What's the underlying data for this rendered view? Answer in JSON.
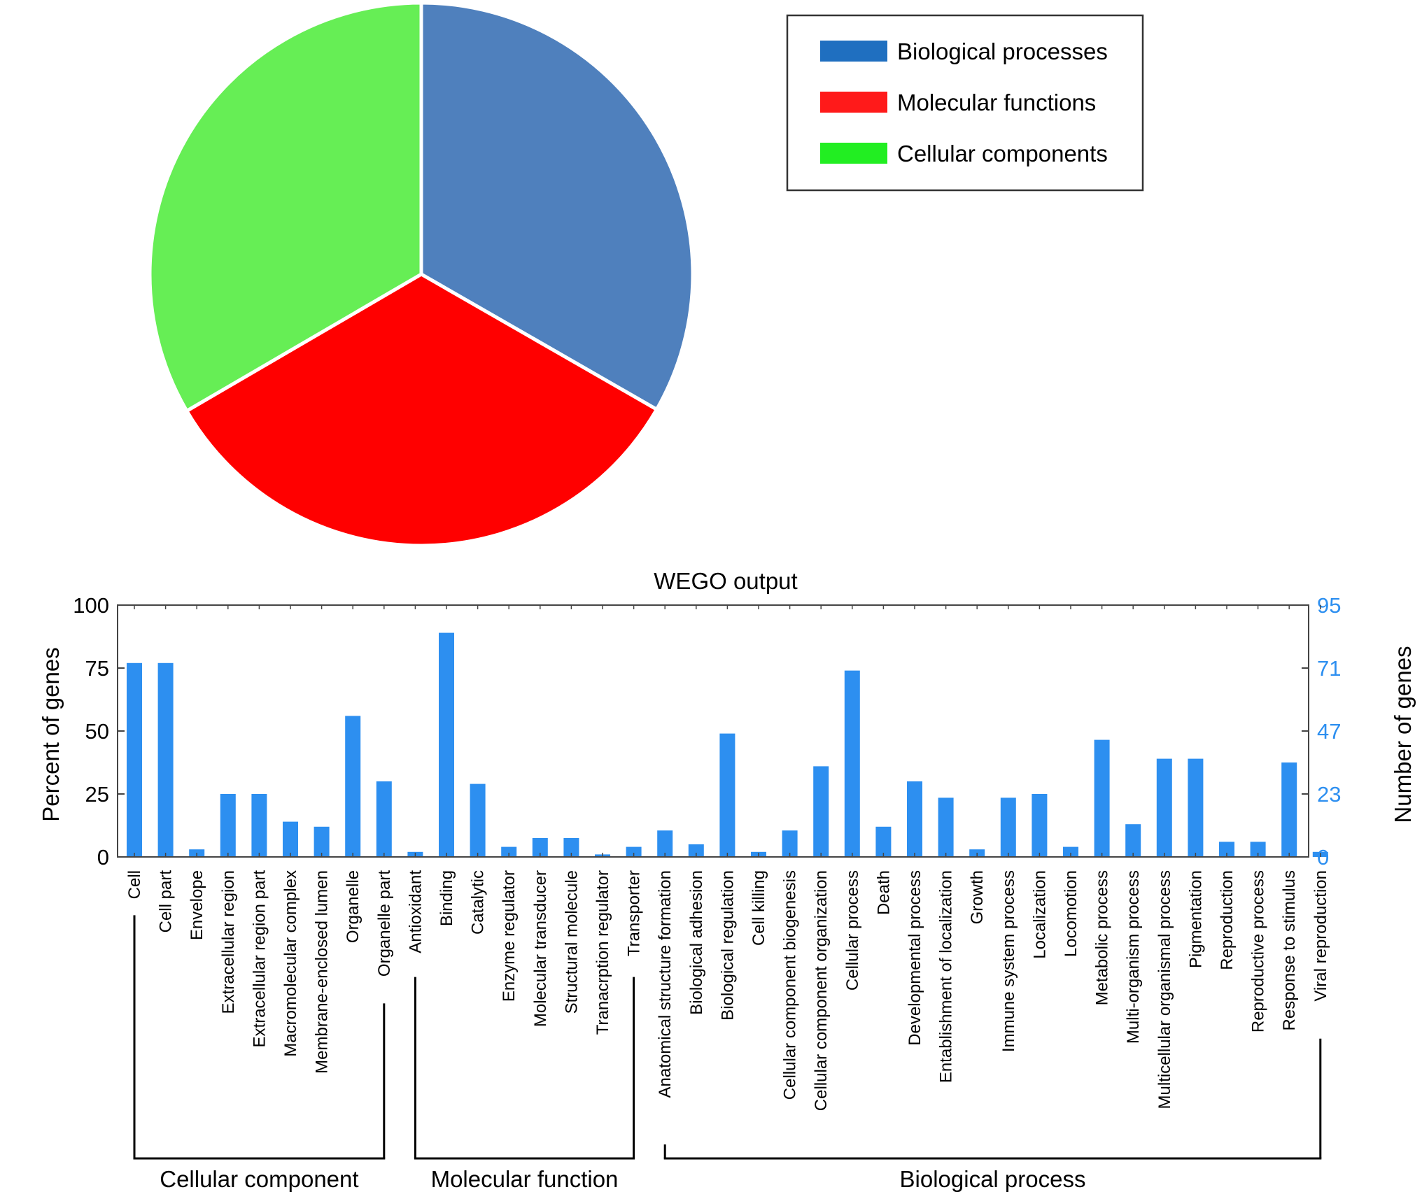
{
  "chart_data": [
    {
      "type": "pie",
      "slices": [
        {
          "label": "Biological processes",
          "value": 33.3,
          "color": "#4f80bd"
        },
        {
          "label": "Molecular functions",
          "value": 33.3,
          "color": "#ff0000"
        },
        {
          "label": "Cellular components",
          "value": 33.4,
          "color": "#66ee55"
        }
      ],
      "legend": {
        "position": "top-right",
        "entries": [
          {
            "label": "Biological processes",
            "color": "#1f6fc0"
          },
          {
            "label": "Molecular functions",
            "color": "#ff1a1a"
          },
          {
            "label": "Cellular components",
            "color": "#22ee22"
          }
        ]
      }
    },
    {
      "type": "bar",
      "title": "WEGO output",
      "ylabel": "Percent of genes",
      "y2label": "Number of genes",
      "ylim": [
        0,
        100
      ],
      "yticks": [
        "0",
        "25",
        "50",
        "75",
        "100"
      ],
      "y2ticks": [
        "0",
        "23",
        "47",
        "71",
        "95"
      ],
      "bar_color": "#2d8ff0",
      "right_axis_color": "#2d8ff0",
      "categories": [
        "Cell",
        "Cell part",
        "Envelope",
        "Extracellular region",
        "Extracellular region part",
        "Macromolecular complex",
        "Membrane-enclosed lumen",
        "Organelle",
        "Organelle part",
        "Antioxidant",
        "Binding",
        "Catalytic",
        "Enzyme regulator",
        "Molecular transducer",
        "Structural molecule",
        "Tranacrption regulator",
        "Transporter",
        "Anatomical structure formation",
        "Biological adhesion",
        "Biological regulation",
        "Cell killing",
        "Cellular component biogenesis",
        "Cellular component organization",
        "Cellular process",
        "Death",
        "Developmental process",
        "Entablishment of localization",
        "Growth",
        "Immune system process",
        "Localization",
        "Locomotion",
        "Metabolic process",
        "Multi-organism process",
        "Multicellular organismal process",
        "Pigmentation",
        "Reproduction",
        "Reproductive process",
        "Response to stimulus",
        "Viral reproduction"
      ],
      "values": [
        77,
        77,
        3,
        25,
        25,
        14,
        12,
        56,
        30,
        2,
        89,
        29,
        4,
        7.5,
        7.5,
        1,
        4,
        10.5,
        5,
        49,
        2,
        10.5,
        36,
        74,
        12,
        30,
        23.5,
        3,
        23.5,
        25,
        4,
        46.5,
        13,
        39,
        39,
        6,
        6,
        37.5,
        2
      ],
      "groups": [
        {
          "label": "Cellular component",
          "start": 0,
          "end": 8
        },
        {
          "label": "Molecular function",
          "start": 9,
          "end": 16
        },
        {
          "label": "Biological process",
          "start": 17,
          "end": 38
        }
      ]
    }
  ]
}
